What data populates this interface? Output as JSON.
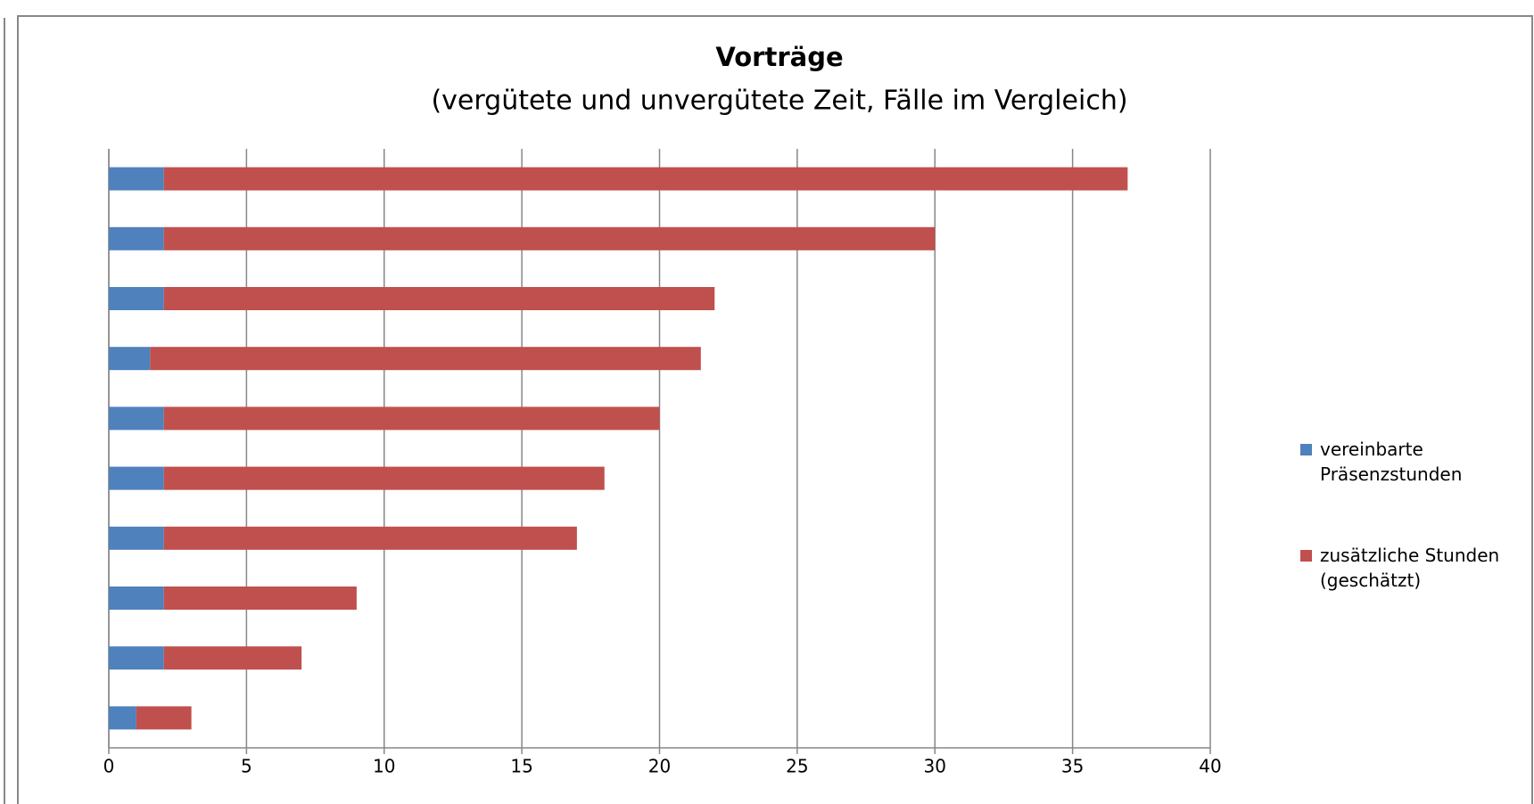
{
  "chart_data": {
    "type": "bar",
    "orientation": "horizontal",
    "stacked": true,
    "title": "Vorträge",
    "subtitle": "(vergütete und unvergütete Zeit, Fälle im Vergleich)",
    "categories": [
      null,
      null,
      null,
      null,
      null,
      null,
      null,
      null,
      null,
      null
    ],
    "series": [
      {
        "name": "vereinbarte Präsenzstunden",
        "color": "#4f81bd",
        "values": [
          2,
          2,
          2,
          1.5,
          2,
          2,
          2,
          2,
          2,
          1
        ]
      },
      {
        "name": "zusätzliche Stunden (geschätzt)",
        "color": "#c0504d",
        "values": [
          35,
          28,
          20,
          20,
          18,
          16,
          15,
          7,
          5,
          2
        ]
      }
    ],
    "xlim": [
      0,
      40
    ],
    "xticks": [
      0,
      5,
      10,
      15,
      20,
      25,
      30,
      35,
      40
    ],
    "grid": true,
    "legend": "right"
  }
}
